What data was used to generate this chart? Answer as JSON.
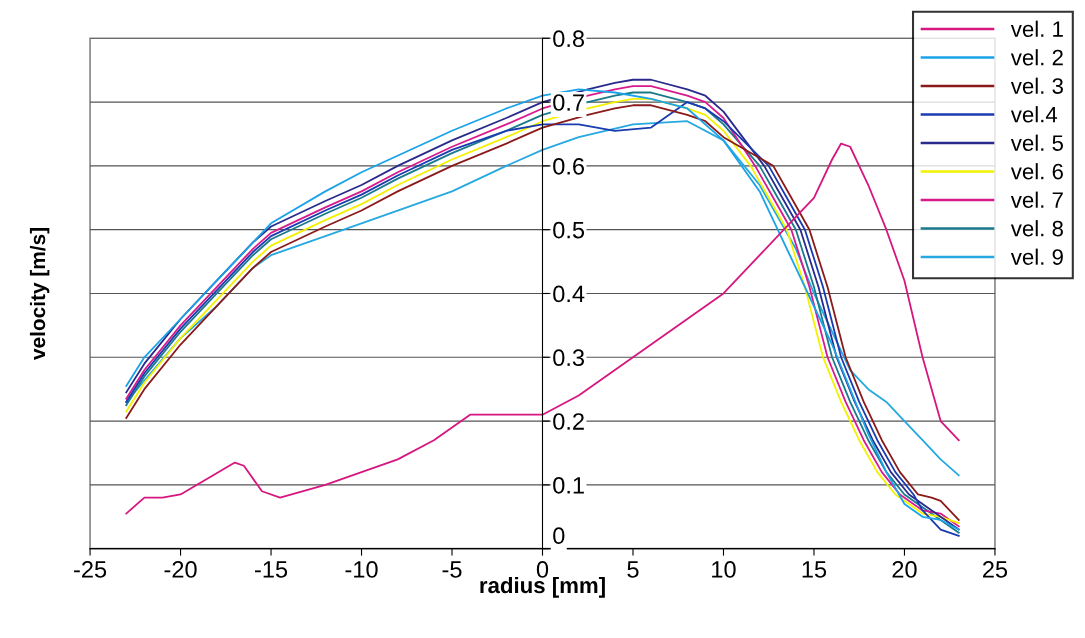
{
  "chart_data": {
    "type": "line",
    "xlabel": "radius [mm]",
    "ylabel": "velocity [m/s]",
    "xlim": [
      -25,
      25
    ],
    "ylim": [
      0,
      0.8
    ],
    "xticks": [
      -25,
      -20,
      -15,
      -10,
      -5,
      0,
      5,
      10,
      15,
      20,
      25
    ],
    "yticks": [
      0,
      0.1,
      0.2,
      0.3,
      0.4,
      0.5,
      0.6,
      0.7,
      0.8
    ],
    "grid": "y",
    "legend": "top right",
    "marker": "none",
    "line_style": "solid",
    "series": [
      {
        "name": "vel. 1",
        "color": "#d6177f",
        "x": [
          -23,
          -22,
          -21,
          -20,
          -18.5,
          -17,
          -16.5,
          -15.5,
          -14.5,
          -12,
          -8,
          -6,
          -4,
          -2,
          0,
          2,
          5,
          8,
          10,
          12,
          14,
          15,
          16,
          16.5,
          17,
          18,
          19,
          20,
          21,
          22,
          23
        ],
        "values": [
          0.055,
          0.08,
          0.08,
          0.085,
          0.11,
          0.135,
          0.13,
          0.09,
          0.08,
          0.1,
          0.14,
          0.17,
          0.21,
          0.21,
          0.21,
          0.24,
          0.3,
          0.36,
          0.4,
          0.46,
          0.52,
          0.55,
          0.61,
          0.635,
          0.63,
          0.57,
          0.5,
          0.42,
          0.3,
          0.2,
          0.17
        ]
      },
      {
        "name": "vel. 2",
        "color": "#1aa3e8",
        "x": [
          -23,
          -22,
          -20,
          -18,
          -15,
          -12,
          -10,
          -5,
          -2,
          0,
          2,
          4,
          6,
          8,
          10,
          12,
          14,
          15,
          16,
          17,
          18,
          19,
          20,
          21,
          22,
          23
        ],
        "values": [
          0.255,
          0.3,
          0.36,
          0.42,
          0.51,
          0.56,
          0.59,
          0.655,
          0.69,
          0.71,
          0.72,
          0.715,
          0.705,
          0.69,
          0.64,
          0.56,
          0.44,
          0.38,
          0.32,
          0.25,
          0.18,
          0.12,
          0.07,
          0.05,
          0.045,
          0.03
        ]
      },
      {
        "name": "vel. 3",
        "color": "#8b1a1a",
        "x": [
          -23,
          -22,
          -20,
          -18,
          -16,
          -15,
          -12,
          -10,
          -8,
          -5,
          -2,
          0,
          2.5,
          4,
          5,
          6,
          8,
          9,
          10,
          12.75,
          13.75,
          14.75,
          15.75,
          16.75,
          17.75,
          18.75,
          19.75,
          20.75,
          21.5,
          22,
          23
        ],
        "values": [
          0.205,
          0.25,
          0.32,
          0.38,
          0.44,
          0.465,
          0.505,
          0.53,
          0.56,
          0.6,
          0.635,
          0.66,
          0.68,
          0.69,
          0.695,
          0.695,
          0.68,
          0.67,
          0.645,
          0.6,
          0.55,
          0.5,
          0.41,
          0.3,
          0.23,
          0.17,
          0.12,
          0.085,
          0.08,
          0.075,
          0.045
        ]
      },
      {
        "name": "vel.4",
        "color": "#1a3cb0",
        "x": [
          -23,
          -22,
          -20,
          -18,
          -16,
          -15,
          -12,
          -10,
          -8,
          -5,
          -2,
          0,
          2,
          4,
          6,
          7,
          8,
          9,
          10,
          12.5,
          13.5,
          14.5,
          15.5,
          16.5,
          17.5,
          18.5,
          19.5,
          20.5,
          21,
          22,
          23
        ],
        "values": [
          0.23,
          0.275,
          0.345,
          0.405,
          0.465,
          0.49,
          0.53,
          0.555,
          0.585,
          0.625,
          0.655,
          0.665,
          0.665,
          0.655,
          0.66,
          0.68,
          0.7,
          0.69,
          0.67,
          0.6,
          0.55,
          0.5,
          0.41,
          0.3,
          0.23,
          0.17,
          0.12,
          0.085,
          0.06,
          0.03,
          0.02
        ]
      },
      {
        "name": "vel. 5",
        "color": "#2a2a8c",
        "x": [
          -23,
          -22,
          -20,
          -18,
          -16,
          -15,
          -12,
          -10,
          -8,
          -5,
          -2,
          0,
          2.5,
          4,
          5,
          6,
          8,
          9,
          10,
          12.25,
          13.25,
          14.25,
          15.25,
          16.25,
          17.25,
          18.25,
          19.25,
          20.25,
          21,
          22,
          23
        ],
        "values": [
          0.245,
          0.29,
          0.36,
          0.42,
          0.48,
          0.505,
          0.545,
          0.57,
          0.6,
          0.64,
          0.675,
          0.7,
          0.72,
          0.73,
          0.735,
          0.735,
          0.72,
          0.71,
          0.685,
          0.6,
          0.55,
          0.5,
          0.41,
          0.3,
          0.23,
          0.17,
          0.12,
          0.085,
          0.07,
          0.05,
          0.03
        ]
      },
      {
        "name": "vel. 6",
        "color": "#f2f200",
        "x": [
          -23,
          -22,
          -20,
          -18,
          -16,
          -15,
          -12,
          -10,
          -8,
          -5,
          -2,
          0,
          2.5,
          4,
          5,
          6,
          8,
          9,
          10,
          11.5,
          12.5,
          13.5,
          14.5,
          15.5,
          16.5,
          17.5,
          18.5,
          19.5,
          21,
          22,
          23
        ],
        "values": [
          0.215,
          0.26,
          0.33,
          0.39,
          0.45,
          0.475,
          0.515,
          0.54,
          0.57,
          0.61,
          0.645,
          0.67,
          0.69,
          0.7,
          0.705,
          0.705,
          0.69,
          0.68,
          0.655,
          0.6,
          0.55,
          0.5,
          0.41,
          0.3,
          0.23,
          0.17,
          0.12,
          0.085,
          0.055,
          0.05,
          0.04
        ]
      },
      {
        "name": "vel. 7",
        "color": "#d81b8c",
        "x": [
          -23,
          -22,
          -20,
          -18,
          -16,
          -15,
          -12,
          -10,
          -8,
          -5,
          -2,
          0,
          2.5,
          4,
          5,
          6,
          8,
          9,
          10,
          11.75,
          12.75,
          13.75,
          14.75,
          15.75,
          16.75,
          17.75,
          18.75,
          19.75,
          21,
          22,
          23
        ],
        "values": [
          0.235,
          0.28,
          0.35,
          0.41,
          0.47,
          0.495,
          0.535,
          0.56,
          0.59,
          0.63,
          0.665,
          0.69,
          0.71,
          0.72,
          0.725,
          0.725,
          0.71,
          0.7,
          0.675,
          0.6,
          0.55,
          0.5,
          0.41,
          0.3,
          0.23,
          0.17,
          0.12,
          0.085,
          0.06,
          0.055,
          0.035
        ]
      },
      {
        "name": "vel. 8",
        "color": "#1a7a8c",
        "x": [
          -23,
          -22,
          -20,
          -18,
          -16,
          -15,
          -12,
          -10,
          -8,
          -5,
          -2,
          0,
          2.5,
          4,
          5,
          6,
          8,
          9,
          10,
          12,
          13,
          14,
          15,
          16,
          17,
          18,
          19,
          20,
          21,
          22,
          23
        ],
        "values": [
          0.225,
          0.27,
          0.34,
          0.4,
          0.46,
          0.485,
          0.525,
          0.55,
          0.58,
          0.62,
          0.655,
          0.68,
          0.7,
          0.71,
          0.715,
          0.715,
          0.7,
          0.69,
          0.665,
          0.6,
          0.55,
          0.5,
          0.41,
          0.3,
          0.23,
          0.17,
          0.12,
          0.085,
          0.065,
          0.045,
          0.025
        ]
      },
      {
        "name": "vel. 9",
        "color": "#26a8e0",
        "x": [
          -23,
          -20,
          -18,
          -16,
          -15,
          -12,
          -10,
          -5,
          -2,
          0,
          2,
          5,
          8,
          10,
          12,
          14,
          15,
          16,
          17,
          18,
          19,
          20,
          21,
          22,
          23
        ],
        "values": [
          0.23,
          0.33,
          0.38,
          0.44,
          0.46,
          0.49,
          0.51,
          0.56,
          0.6,
          0.625,
          0.645,
          0.665,
          0.67,
          0.64,
          0.57,
          0.47,
          0.4,
          0.34,
          0.28,
          0.25,
          0.23,
          0.2,
          0.17,
          0.14,
          0.115
        ]
      }
    ]
  }
}
